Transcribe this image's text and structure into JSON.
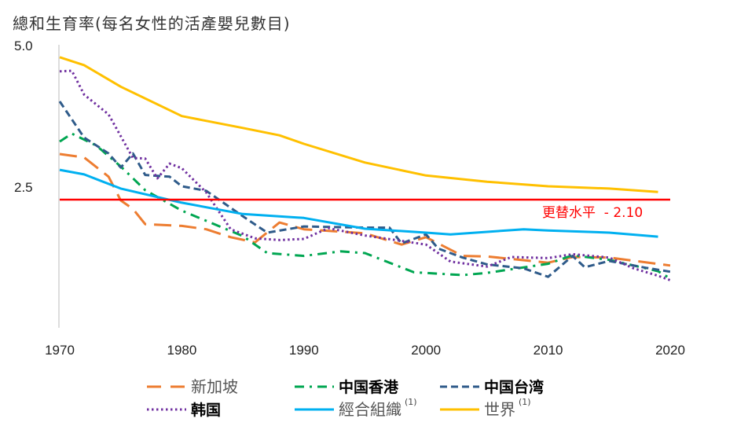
{
  "chart_data": {
    "type": "line",
    "title": "總和生育率(每名女性的活產嬰兒數目)",
    "xlim": [
      1970,
      2020
    ],
    "ylim": [
      0,
      5.0
    ],
    "x_ticks": [
      "1970",
      "1980",
      "1990",
      "2000",
      "2010",
      "2020"
    ],
    "y_ticks": [
      "5.0",
      "2.5"
    ],
    "grid": false,
    "legend_position": "bottom",
    "reference_line": {
      "label": "更替水平  - 2.10",
      "value": 2.1,
      "color": "#FF0000"
    },
    "series": [
      {
        "name": "新加坡",
        "style": "long-dash",
        "bold": false,
        "color": "#ED7D31",
        "x": [
          1970,
          1972,
          1974,
          1975,
          1976,
          1977,
          1980,
          1982,
          1984,
          1986,
          1988,
          1990,
          1995,
          1998,
          2000,
          2003,
          2005,
          2010,
          2012,
          2015,
          2020
        ],
        "y": [
          3.07,
          3.01,
          2.67,
          2.25,
          2.1,
          1.83,
          1.8,
          1.74,
          1.6,
          1.51,
          1.86,
          1.74,
          1.67,
          1.47,
          1.6,
          1.27,
          1.26,
          1.15,
          1.25,
          1.24,
          1.1
        ]
      },
      {
        "name": "中国香港",
        "style": "dash-dot",
        "bold": true,
        "color": "#00A651",
        "x": [
          1970,
          1971,
          1973,
          1975,
          1977,
          1980,
          1985,
          1987,
          1990,
          1993,
          1995,
          1999,
          2003,
          2005,
          2010,
          2012,
          2015,
          2019,
          2020
        ],
        "y": [
          3.29,
          3.43,
          3.22,
          2.85,
          2.43,
          2.07,
          1.62,
          1.32,
          1.27,
          1.35,
          1.32,
          0.98,
          0.93,
          0.97,
          1.13,
          1.28,
          1.2,
          1.0,
          0.87
        ]
      },
      {
        "name": "中国台湾",
        "style": "dash",
        "bold": true,
        "color": "#2F5B8A",
        "x": [
          1970,
          1972,
          1974,
          1975,
          1976,
          1977,
          1979,
          1980,
          1982,
          1985,
          1987,
          1990,
          1995,
          1997,
          1998,
          2000,
          2001,
          2003,
          2005,
          2008,
          2010,
          2012,
          2013,
          2015,
          2018,
          2020
        ],
        "y": [
          4.0,
          3.36,
          3.08,
          2.83,
          3.08,
          2.7,
          2.67,
          2.5,
          2.42,
          1.97,
          1.68,
          1.79,
          1.77,
          1.77,
          1.49,
          1.65,
          1.4,
          1.24,
          1.12,
          1.05,
          0.9,
          1.27,
          1.07,
          1.18,
          1.06,
          0.99
        ]
      },
      {
        "name": "韩国",
        "style": "dot",
        "bold": true,
        "color": "#7030A0",
        "x": [
          1970,
          1971,
          1972,
          1974,
          1976,
          1977,
          1978,
          1979,
          1980,
          1982,
          1984,
          1986,
          1988,
          1990,
          1992,
          1995,
          2000,
          2002,
          2005,
          2007,
          2010,
          2012,
          2015,
          2017,
          2019,
          2020
        ],
        "y": [
          4.53,
          4.54,
          4.12,
          3.77,
          3.0,
          2.99,
          2.64,
          2.9,
          2.82,
          2.39,
          1.74,
          1.58,
          1.55,
          1.57,
          1.76,
          1.63,
          1.47,
          1.17,
          1.08,
          1.25,
          1.23,
          1.3,
          1.24,
          1.05,
          0.92,
          0.84
        ]
      },
      {
        "name": "經合組織",
        "note": "(1)",
        "style": "solid",
        "bold": false,
        "color": "#00B0F0",
        "x": [
          1970,
          1972,
          1975,
          1980,
          1985,
          1990,
          1995,
          2000,
          2002,
          2008,
          2010,
          2015,
          2019
        ],
        "y": [
          2.79,
          2.71,
          2.46,
          2.21,
          2.01,
          1.94,
          1.75,
          1.68,
          1.65,
          1.74,
          1.72,
          1.68,
          1.61
        ]
      },
      {
        "name": "世界",
        "note": "(1)",
        "style": "solid",
        "bold": false,
        "color": "#FFC000",
        "x": [
          1970,
          1972,
          1975,
          1980,
          1985,
          1988,
          1990,
          1995,
          2000,
          2005,
          2010,
          2015,
          2019
        ],
        "y": [
          4.78,
          4.64,
          4.26,
          3.74,
          3.53,
          3.4,
          3.25,
          2.92,
          2.69,
          2.58,
          2.5,
          2.46,
          2.4
        ]
      }
    ]
  }
}
